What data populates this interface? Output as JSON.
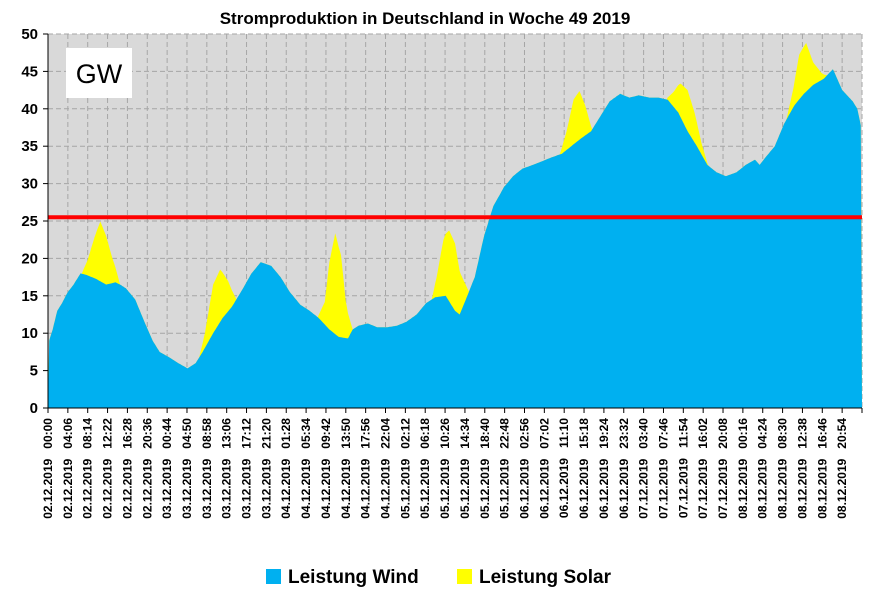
{
  "chart_data": {
    "type": "area",
    "title": "Stromproduktion in Deutschland in Woche 49 2019",
    "unit_label": "GW",
    "ylim": [
      0,
      50
    ],
    "yticks": [
      0,
      5,
      10,
      15,
      20,
      25,
      30,
      35,
      40,
      45,
      50
    ],
    "grid": true,
    "stacked": true,
    "legend_position": "bottom",
    "x_tick_labels": [
      {
        "time": "00:00",
        "date": "02.12.2019"
      },
      {
        "time": "04:06",
        "date": "02.12.2019"
      },
      {
        "time": "08:14",
        "date": "02.12.2019"
      },
      {
        "time": "12:22",
        "date": "02.12.2019"
      },
      {
        "time": "16:28",
        "date": "02.12.2019"
      },
      {
        "time": "20:36",
        "date": "02.12.2019"
      },
      {
        "time": "00:44",
        "date": "03.12.2019"
      },
      {
        "time": "04:50",
        "date": "03.12.2019"
      },
      {
        "time": "08:58",
        "date": "03.12.2019"
      },
      {
        "time": "13:06",
        "date": "03.12.2019"
      },
      {
        "time": "17:12",
        "date": "03.12.2019"
      },
      {
        "time": "21:20",
        "date": "03.12.2019"
      },
      {
        "time": "01:28",
        "date": "04.12.2019"
      },
      {
        "time": "05:34",
        "date": "04.12.2019"
      },
      {
        "time": "09:42",
        "date": "04.12.2019"
      },
      {
        "time": "13:50",
        "date": "04.12.2019"
      },
      {
        "time": "17:56",
        "date": "04.12.2019"
      },
      {
        "time": "22:04",
        "date": "04.12.2019"
      },
      {
        "time": "02:12",
        "date": "05.12.2019"
      },
      {
        "time": "06:18",
        "date": "05.12.2019"
      },
      {
        "time": "10:26",
        "date": "05.12.2019"
      },
      {
        "time": "14:34",
        "date": "05.12.2019"
      },
      {
        "time": "18:40",
        "date": "05.12.2019"
      },
      {
        "time": "22:48",
        "date": "05.12.2019"
      },
      {
        "time": "02:56",
        "date": "06.12.2019"
      },
      {
        "time": "07:02",
        "date": "06.12.2019"
      },
      {
        "time": "11:10",
        "date": "06.12.2019"
      },
      {
        "time": "15:18",
        "date": "06.12.2019"
      },
      {
        "time": "19:24",
        "date": "06.12.2019"
      },
      {
        "time": "23:32",
        "date": "06.12.2019"
      },
      {
        "time": "03:40",
        "date": "07.12.2019"
      },
      {
        "time": "07:46",
        "date": "07.12.2019"
      },
      {
        "time": "11:54",
        "date": "07.12.2019"
      },
      {
        "time": "16:02",
        "date": "07.12.2019"
      },
      {
        "time": "20:08",
        "date": "07.12.2019"
      },
      {
        "time": "00:16",
        "date": "08.12.2019"
      },
      {
        "time": "04:24",
        "date": "08.12.2019"
      },
      {
        "time": "08:30",
        "date": "08.12.2019"
      },
      {
        "time": "12:38",
        "date": "08.12.2019"
      },
      {
        "time": "16:46",
        "date": "08.12.2019"
      },
      {
        "time": "20:54",
        "date": "08.12.2019"
      }
    ],
    "x_range_days": [
      0,
      7
    ],
    "series": [
      {
        "name": "Leistung Wind",
        "color": "#00B0F0",
        "points": [
          [
            0.0,
            8.5
          ],
          [
            0.04,
            10.5
          ],
          [
            0.08,
            13
          ],
          [
            0.12,
            14
          ],
          [
            0.17,
            15.5
          ],
          [
            0.22,
            16.5
          ],
          [
            0.28,
            18
          ],
          [
            0.33,
            17.8
          ],
          [
            0.42,
            17.2
          ],
          [
            0.5,
            16.5
          ],
          [
            0.58,
            16.8
          ],
          [
            0.62,
            16.5
          ],
          [
            0.67,
            16
          ],
          [
            0.75,
            14.5
          ],
          [
            0.83,
            11.5
          ],
          [
            0.9,
            9
          ],
          [
            0.96,
            7.5
          ],
          [
            1.04,
            6.8
          ],
          [
            1.12,
            6
          ],
          [
            1.2,
            5.3
          ],
          [
            1.27,
            6
          ],
          [
            1.33,
            7.5
          ],
          [
            1.42,
            10
          ],
          [
            1.5,
            12
          ],
          [
            1.58,
            13.5
          ],
          [
            1.67,
            15.8
          ],
          [
            1.75,
            18
          ],
          [
            1.83,
            19.5
          ],
          [
            1.92,
            19
          ],
          [
            2.0,
            17.5
          ],
          [
            2.08,
            15.5
          ],
          [
            2.17,
            13.8
          ],
          [
            2.25,
            13
          ],
          [
            2.33,
            12
          ],
          [
            2.42,
            10.5
          ],
          [
            2.5,
            9.5
          ],
          [
            2.58,
            9.3
          ],
          [
            2.62,
            10.5
          ],
          [
            2.67,
            11
          ],
          [
            2.75,
            11.3
          ],
          [
            2.83,
            10.8
          ],
          [
            2.92,
            10.8
          ],
          [
            3.0,
            11
          ],
          [
            3.08,
            11.5
          ],
          [
            3.17,
            12.5
          ],
          [
            3.25,
            14
          ],
          [
            3.33,
            14.8
          ],
          [
            3.42,
            15
          ],
          [
            3.5,
            13
          ],
          [
            3.54,
            12.5
          ],
          [
            3.58,
            14
          ],
          [
            3.67,
            17.5
          ],
          [
            3.75,
            23
          ],
          [
            3.83,
            27
          ],
          [
            3.92,
            29.5
          ],
          [
            4.0,
            31
          ],
          [
            4.08,
            32
          ],
          [
            4.17,
            32.5
          ],
          [
            4.25,
            33
          ],
          [
            4.33,
            33.5
          ],
          [
            4.42,
            34
          ],
          [
            4.5,
            35
          ],
          [
            4.58,
            36
          ],
          [
            4.67,
            37
          ],
          [
            4.75,
            39
          ],
          [
            4.83,
            41
          ],
          [
            4.92,
            42
          ],
          [
            5.0,
            41.5
          ],
          [
            5.08,
            41.8
          ],
          [
            5.17,
            41.5
          ],
          [
            5.25,
            41.5
          ],
          [
            5.33,
            41.2
          ],
          [
            5.42,
            39.5
          ],
          [
            5.5,
            37
          ],
          [
            5.58,
            35
          ],
          [
            5.67,
            32.5
          ],
          [
            5.75,
            31.5
          ],
          [
            5.83,
            31
          ],
          [
            5.92,
            31.5
          ],
          [
            6.0,
            32.5
          ],
          [
            6.08,
            33.2
          ],
          [
            6.12,
            32.5
          ],
          [
            6.17,
            33.5
          ],
          [
            6.25,
            35
          ],
          [
            6.33,
            38
          ],
          [
            6.42,
            40.5
          ],
          [
            6.5,
            42
          ],
          [
            6.58,
            43.2
          ],
          [
            6.67,
            44
          ],
          [
            6.75,
            45.3
          ],
          [
            6.83,
            42.5
          ],
          [
            6.92,
            41
          ],
          [
            6.96,
            40
          ],
          [
            7.0,
            37
          ]
        ]
      },
      {
        "name": "Leistung Solar",
        "color": "#FFFF00",
        "points": [
          [
            0.29,
            0
          ],
          [
            0.34,
            2
          ],
          [
            0.4,
            5.5
          ],
          [
            0.45,
            8
          ],
          [
            0.5,
            6.5
          ],
          [
            0.55,
            3.5
          ],
          [
            0.62,
            0
          ],
          [
            1.3,
            0
          ],
          [
            1.35,
            2
          ],
          [
            1.42,
            6.5
          ],
          [
            1.48,
            7
          ],
          [
            1.55,
            4
          ],
          [
            1.62,
            0
          ],
          [
            2.32,
            0
          ],
          [
            2.38,
            3
          ],
          [
            2.42,
            9
          ],
          [
            2.47,
            13.5
          ],
          [
            2.52,
            11
          ],
          [
            2.56,
            5
          ],
          [
            2.62,
            0
          ],
          [
            3.3,
            0
          ],
          [
            3.34,
            2.5
          ],
          [
            3.4,
            7.5
          ],
          [
            3.45,
            9.5
          ],
          [
            3.5,
            9
          ],
          [
            3.55,
            5
          ],
          [
            3.62,
            0
          ],
          [
            4.4,
            0
          ],
          [
            4.46,
            2.5
          ],
          [
            4.52,
            6
          ],
          [
            4.57,
            6.5
          ],
          [
            4.62,
            4
          ],
          [
            4.68,
            0
          ],
          [
            5.32,
            0
          ],
          [
            5.38,
            2
          ],
          [
            5.44,
            4.5
          ],
          [
            5.5,
            5.5
          ],
          [
            5.56,
            4
          ],
          [
            5.62,
            1.5
          ],
          [
            5.68,
            0
          ],
          [
            6.35,
            0
          ],
          [
            6.41,
            2.5
          ],
          [
            6.46,
            6
          ],
          [
            6.52,
            6.5
          ],
          [
            6.58,
            3
          ],
          [
            6.65,
            1
          ],
          [
            6.7,
            0
          ]
        ]
      }
    ],
    "reference_line": {
      "value": 25.5,
      "color": "#FF0000"
    },
    "legend": [
      {
        "label": "Leistung Wind",
        "color": "#00B0F0"
      },
      {
        "label": "Leistung Solar",
        "color": "#FFFF00"
      }
    ]
  }
}
